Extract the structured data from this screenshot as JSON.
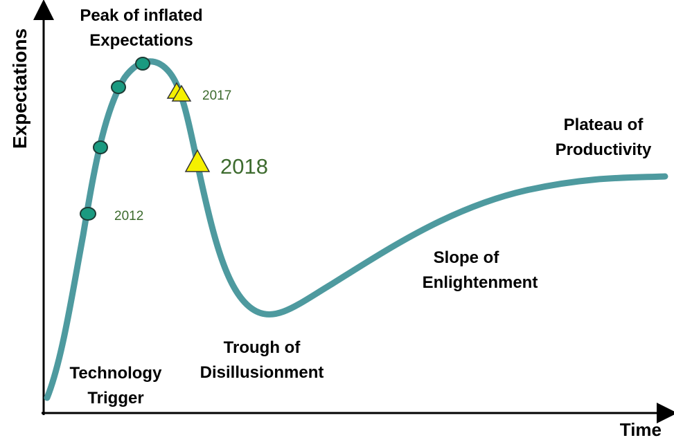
{
  "axes": {
    "y_label": "Expectations",
    "x_label": "Time"
  },
  "phases": [
    {
      "lines": [
        "Peak of inflated",
        "Expectations"
      ]
    },
    {
      "lines": [
        "Plateau of",
        "Productivity"
      ]
    },
    {
      "lines": [
        "Slope of",
        "Enlightenment"
      ]
    },
    {
      "lines": [
        "Trough of",
        "Disillusionment"
      ]
    },
    {
      "lines": [
        "Technology",
        "Trigger"
      ]
    }
  ],
  "years": [
    "2012",
    "2017",
    "2018"
  ]
}
